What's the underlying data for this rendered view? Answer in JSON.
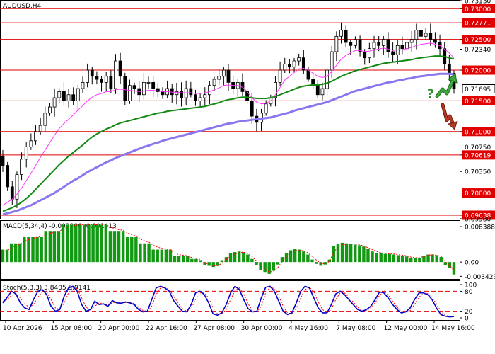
{
  "title": "AUDUSD,H4",
  "colors": {
    "frame": "#000000",
    "level": "#e00000",
    "ma_fast": "#ff33ff",
    "ma_mid": "#118811",
    "ma_slow": "#8877ee",
    "macd_bar": "#119911",
    "macd_signal": "#ff0000",
    "stoch_main": "#0000cc",
    "stoch_signal": "#ff0000",
    "arrow_up": "#2e8b2e",
    "arrow_down": "#a52a1a",
    "question": "#2e8b2e",
    "current_price": "#cccccc"
  },
  "price_axis": {
    "labels": [
      "0.73130",
      "0.73000",
      "0.72771",
      "0.72500",
      "0.72340",
      "0.72000",
      "0.71695",
      "0.71500",
      "0.71000",
      "0.70750",
      "0.70619",
      "0.70350",
      "0.70000",
      "0.69638",
      "0.69580"
    ],
    "highlighted": [
      "0.73000",
      "0.72771",
      "0.72500",
      "0.72000",
      "0.71500",
      "0.71000",
      "0.70619",
      "0.70000",
      "0.69638"
    ],
    "current": "0.71695"
  },
  "question_mark": "?",
  "macd": {
    "title": "MACD(5,34,4) -0.002886 -0.001413",
    "axis_labels": [
      "0.008388",
      "0.00",
      "-0.003423"
    ],
    "hist": [
      2,
      2,
      3,
      3,
      3,
      4,
      4,
      4,
      4,
      4,
      5,
      5,
      5,
      5,
      6,
      6,
      6,
      6,
      6,
      6,
      6,
      6,
      6,
      6,
      6,
      5,
      5,
      5,
      5,
      4,
      4,
      4,
      3,
      3,
      3,
      2,
      2,
      2,
      2,
      2,
      1,
      1,
      1,
      1,
      0.5,
      0.5,
      0.3,
      -0.5,
      -0.6,
      -0.8,
      -0.6,
      0.3,
      0.8,
      1.4,
      1.6,
      1.7,
      1.6,
      1.2,
      0.5,
      -0.5,
      -1.3,
      -1.6,
      -1.9,
      -1.4,
      -0.4,
      0.8,
      1.5,
      1.9,
      2.1,
      2.0,
      1.7,
      1.2,
      0.4,
      -0.3,
      -0.6,
      -0.4,
      0.4,
      2.6,
      2.9,
      3.1,
      3.0,
      2.9,
      2.8,
      2.7,
      2.5,
      2.1,
      1.7,
      1.5,
      1.4,
      1.3,
      1.3,
      1.2,
      1.1,
      1.0,
      0.9,
      0.7,
      0.6,
      0.7,
      1.0,
      1.2,
      1.2,
      1.1,
      0.8,
      -0.5,
      -1.0,
      -2.0
    ],
    "signal": [
      1.5,
      1.8,
      2.3,
      2.6,
      2.9,
      3.3,
      3.6,
      3.8,
      4.0,
      4.1,
      4.4,
      4.6,
      4.8,
      4.9,
      5.3,
      5.6,
      5.8,
      5.9,
      6.0,
      6.0,
      6.0,
      6.0,
      6.0,
      6.0,
      6.0,
      5.6,
      5.4,
      5.2,
      5.1,
      4.7,
      4.4,
      4.2,
      3.7,
      3.4,
      3.2,
      2.7,
      2.4,
      2.2,
      2.1,
      2.0,
      1.4,
      1.2,
      1.1,
      1.0,
      0.7,
      0.6,
      0.4,
      -0.1,
      -0.4,
      -0.6,
      -0.6,
      -0.2,
      0.4,
      0.9,
      1.3,
      1.5,
      1.6,
      1.4,
      0.9,
      0.2,
      -0.6,
      -1.1,
      -1.6,
      -1.5,
      -0.9,
      0.1,
      0.9,
      1.5,
      1.8,
      1.9,
      1.8,
      1.5,
      0.9,
      0.3,
      -0.2,
      -0.3,
      0.1,
      1.6,
      2.4,
      2.8,
      2.9,
      2.9,
      2.9,
      2.8,
      2.6,
      2.3,
      2.0,
      1.7,
      1.5,
      1.4,
      1.3,
      1.3,
      1.2,
      1.1,
      1.0,
      0.8,
      0.7,
      0.7,
      0.9,
      1.1,
      1.2,
      1.1,
      0.9,
      0.1,
      -0.5,
      -1.4
    ]
  },
  "stoch": {
    "title": "Stoch(5,3,3) 3.8405 5.9141",
    "axis_labels": [
      "100",
      "80",
      "20",
      "0"
    ],
    "levels": [
      80,
      20
    ],
    "main": [
      45,
      62,
      80,
      72,
      45,
      30,
      25,
      55,
      80,
      85,
      70,
      35,
      20,
      25,
      65,
      90,
      95,
      80,
      40,
      20,
      25,
      50,
      40,
      42,
      35,
      52,
      45,
      44,
      48,
      45,
      40,
      25,
      18,
      20,
      55,
      90,
      95,
      90,
      80,
      52,
      35,
      20,
      18,
      40,
      75,
      80,
      70,
      45,
      12,
      8,
      15,
      40,
      75,
      95,
      85,
      55,
      28,
      18,
      20,
      60,
      92,
      95,
      80,
      50,
      20,
      10,
      15,
      45,
      80,
      95,
      90,
      60,
      30,
      15,
      15,
      40,
      72,
      80,
      70,
      55,
      40,
      25,
      20,
      25,
      35,
      55,
      78,
      75,
      60,
      40,
      25,
      15,
      18,
      30,
      55,
      75,
      75,
      70,
      55,
      30,
      10,
      5,
      3,
      4
    ],
    "signal": [
      50,
      55,
      68,
      72,
      60,
      42,
      32,
      40,
      62,
      78,
      78,
      55,
      30,
      25,
      45,
      75,
      90,
      88,
      60,
      32,
      24,
      35,
      45,
      42,
      38,
      45,
      48,
      45,
      46,
      46,
      43,
      32,
      22,
      20,
      35,
      70,
      90,
      92,
      85,
      65,
      45,
      28,
      20,
      28,
      55,
      75,
      75,
      60,
      30,
      12,
      12,
      25,
      55,
      82,
      90,
      72,
      42,
      22,
      18,
      35,
      75,
      92,
      88,
      65,
      35,
      15,
      12,
      28,
      60,
      85,
      92,
      78,
      48,
      25,
      15,
      25,
      55,
      75,
      75,
      62,
      48,
      32,
      22,
      22,
      30,
      45,
      68,
      78,
      70,
      50,
      32,
      20,
      17,
      22,
      40,
      62,
      73,
      73,
      62,
      42,
      20,
      8,
      5,
      4
    ]
  },
  "chart_data": {
    "type": "candlestick",
    "title": "AUDUSD,H4",
    "x_labels": [
      "10 Apr 2026",
      "15 Apr 08:00",
      "20 Apr 00:00",
      "22 Apr 16:00",
      "27 Apr 08:00",
      "30 Apr 00:00",
      "4 May 16:00",
      "7 May 08:00",
      "12 May 00:00",
      "14 May 16:00"
    ],
    "ylim": [
      0.6958,
      0.7313
    ],
    "levels": [
      0.73,
      0.72771,
      0.725,
      0.72,
      0.715,
      0.71,
      0.70619,
      0.7,
      0.69638
    ],
    "close": [
      0.7045,
      0.701,
      0.699,
      0.703,
      0.7055,
      0.7075,
      0.7085,
      0.71,
      0.711,
      0.713,
      0.714,
      0.7155,
      0.7165,
      0.715,
      0.716,
      0.715,
      0.717,
      0.718,
      0.72,
      0.719,
      0.7185,
      0.718,
      0.719,
      0.717,
      0.7215,
      0.719,
      0.715,
      0.7175,
      0.717,
      0.716,
      0.718,
      0.718,
      0.717,
      0.7165,
      0.716,
      0.717,
      0.716,
      0.7165,
      0.7155,
      0.717,
      0.716,
      0.715,
      0.7155,
      0.716,
      0.7175,
      0.7185,
      0.719,
      0.72,
      0.718,
      0.717,
      0.718,
      0.7165,
      0.715,
      0.7125,
      0.7115,
      0.713,
      0.7145,
      0.7155,
      0.718,
      0.72,
      0.721,
      0.7205,
      0.7215,
      0.722,
      0.72,
      0.7185,
      0.7175,
      0.716,
      0.717,
      0.72,
      0.723,
      0.7255,
      0.7265,
      0.7245,
      0.724,
      0.725,
      0.723,
      0.722,
      0.7235,
      0.7245,
      0.724,
      0.725,
      0.723,
      0.7225,
      0.724,
      0.7235,
      0.7245,
      0.725,
      0.7265,
      0.7255,
      0.726,
      0.725,
      0.7245,
      0.7235,
      0.721,
      0.7195,
      0.717
    ],
    "ma_fast": [
      0.698,
      0.6985,
      0.699,
      0.6998,
      0.7008,
      0.702,
      0.7032,
      0.7045,
      0.7058,
      0.707,
      0.7082,
      0.7094,
      0.7105,
      0.7113,
      0.712,
      0.7127,
      0.7135,
      0.7142,
      0.715,
      0.7156,
      0.716,
      0.7162,
      0.7165,
      0.7165,
      0.7168,
      0.7169,
      0.7168,
      0.7167,
      0.7166,
      0.7165,
      0.7166,
      0.7167,
      0.7167,
      0.7166,
      0.7165,
      0.7165,
      0.7164,
      0.7164,
      0.7163,
      0.7163,
      0.7163,
      0.7162,
      0.7162,
      0.7163,
      0.7165,
      0.7168,
      0.7171,
      0.7175,
      0.7176,
      0.7175,
      0.7175,
      0.7172,
      0.7165,
      0.7155,
      0.7148,
      0.7145,
      0.7146,
      0.715,
      0.716,
      0.7172,
      0.7184,
      0.719,
      0.7196,
      0.7202,
      0.7203,
      0.72,
      0.7195,
      0.719,
      0.7188,
      0.719,
      0.7198,
      0.7208,
      0.7218,
      0.7224,
      0.7228,
      0.7232,
      0.7232,
      0.723,
      0.7231,
      0.7233,
      0.7234,
      0.7236,
      0.7234,
      0.7232,
      0.7233,
      0.7233,
      0.7235,
      0.7237,
      0.724,
      0.7242,
      0.7243,
      0.7244,
      0.7242,
      0.724,
      0.7234,
      0.7228,
      0.722
    ],
    "ma_mid": [
      0.697,
      0.6973,
      0.6976,
      0.698,
      0.6985,
      0.6991,
      0.6998,
      0.7006,
      0.7014,
      0.7022,
      0.703,
      0.7038,
      0.7046,
      0.7053,
      0.706,
      0.7066,
      0.7072,
      0.7078,
      0.7085,
      0.7091,
      0.7096,
      0.71,
      0.7104,
      0.7107,
      0.7111,
      0.7114,
      0.7116,
      0.7118,
      0.712,
      0.7122,
      0.7124,
      0.7126,
      0.7128,
      0.713,
      0.7131,
      0.7133,
      0.7134,
      0.7135,
      0.7136,
      0.7137,
      0.7138,
      0.7139,
      0.714,
      0.7141,
      0.7143,
      0.7145,
      0.7147,
      0.715,
      0.7152,
      0.7153,
      0.7155,
      0.7156,
      0.7156,
      0.7155,
      0.7154,
      0.7154,
      0.7154,
      0.7155,
      0.7157,
      0.716,
      0.7163,
      0.7166,
      0.7169,
      0.7172,
      0.7174,
      0.7175,
      0.7176,
      0.7176,
      0.7177,
      0.7179,
      0.7182,
      0.7186,
      0.719,
      0.7193,
      0.7196,
      0.7199,
      0.7201,
      0.7203,
      0.7205,
      0.7207,
      0.7209,
      0.7211,
      0.7212,
      0.7213,
      0.7214,
      0.7215,
      0.7216,
      0.7217,
      0.7219,
      0.722,
      0.7221,
      0.7222,
      0.7223,
      0.7223,
      0.7222,
      0.722,
      0.7218
    ],
    "ma_slow": [
      0.6965,
      0.6967,
      0.6969,
      0.6971,
      0.6974,
      0.6977,
      0.698,
      0.6984,
      0.6988,
      0.6992,
      0.6996,
      0.7,
      0.7005,
      0.701,
      0.7015,
      0.702,
      0.7024,
      0.7029,
      0.7034,
      0.7038,
      0.7042,
      0.7046,
      0.705,
      0.7053,
      0.7057,
      0.706,
      0.7063,
      0.7066,
      0.7069,
      0.7072,
      0.7075,
      0.7077,
      0.708,
      0.7082,
      0.7085,
      0.7087,
      0.7089,
      0.7091,
      0.7093,
      0.7095,
      0.7097,
      0.7099,
      0.7101,
      0.7103,
      0.7105,
      0.7107,
      0.7109,
      0.7111,
      0.7113,
      0.7114,
      0.7116,
      0.7117,
      0.7118,
      0.7119,
      0.712,
      0.7121,
      0.7122,
      0.7123,
      0.7125,
      0.7127,
      0.7129,
      0.7131,
      0.7134,
      0.7136,
      0.7138,
      0.714,
      0.7142,
      0.7144,
      0.7146,
      0.7148,
      0.7151,
      0.7154,
      0.7157,
      0.716,
      0.7163,
      0.7166,
      0.7168,
      0.717,
      0.7172,
      0.7174,
      0.7176,
      0.7178,
      0.718,
      0.7181,
      0.7183,
      0.7184,
      0.7186,
      0.7187,
      0.7189,
      0.719,
      0.7191,
      0.7192,
      0.7193,
      0.7194,
      0.7194,
      0.7194,
      0.7193
    ]
  }
}
